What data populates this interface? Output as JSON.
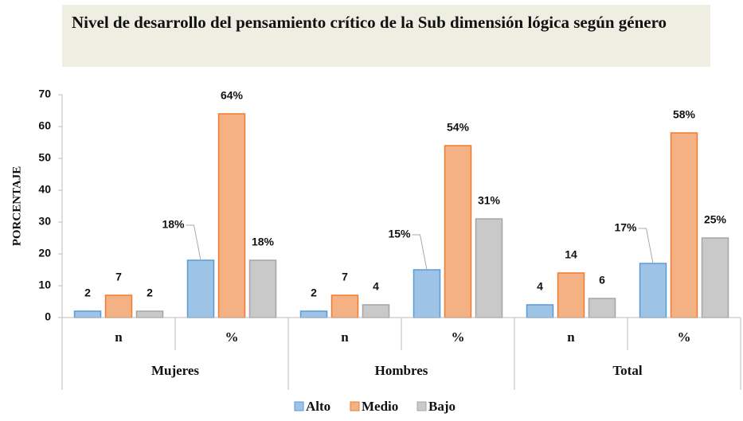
{
  "chart_data": {
    "type": "bar",
    "title": "Nivel de desarrollo del pensamiento crítico de la Sub dimensión  lógica según género",
    "y_label": "PORCENTAJE",
    "groups": [
      "Mujeres",
      "Hombres",
      "Total"
    ],
    "categories": [
      "n",
      "%",
      "n",
      "%",
      "n",
      "%"
    ],
    "series": [
      {
        "name": "Alto",
        "color": "#9dc3e6",
        "stroke": "#5b9bd5",
        "values": [
          2,
          18,
          2,
          15,
          4,
          17
        ],
        "value_labels": [
          "2",
          "18%",
          "2",
          "15%",
          "4",
          "17%"
        ]
      },
      {
        "name": "Medio",
        "color": "#f4b183",
        "stroke": "#ed7d31",
        "values": [
          7,
          64,
          7,
          54,
          14,
          58
        ],
        "value_labels": [
          "7",
          "64%",
          "7",
          "54%",
          "14",
          "58%"
        ]
      },
      {
        "name": "Bajo",
        "color": "#c9c9c9",
        "stroke": "#a5a5a5",
        "values": [
          2,
          18,
          4,
          31,
          6,
          25
        ],
        "value_labels": [
          "2",
          "18%",
          "4",
          "31%",
          "6",
          "25%"
        ]
      }
    ],
    "ylim": [
      0,
      70
    ],
    "yticks": [
      0,
      10,
      20,
      30,
      40,
      50,
      60,
      70
    ],
    "grid": false,
    "legend": "bottom"
  }
}
